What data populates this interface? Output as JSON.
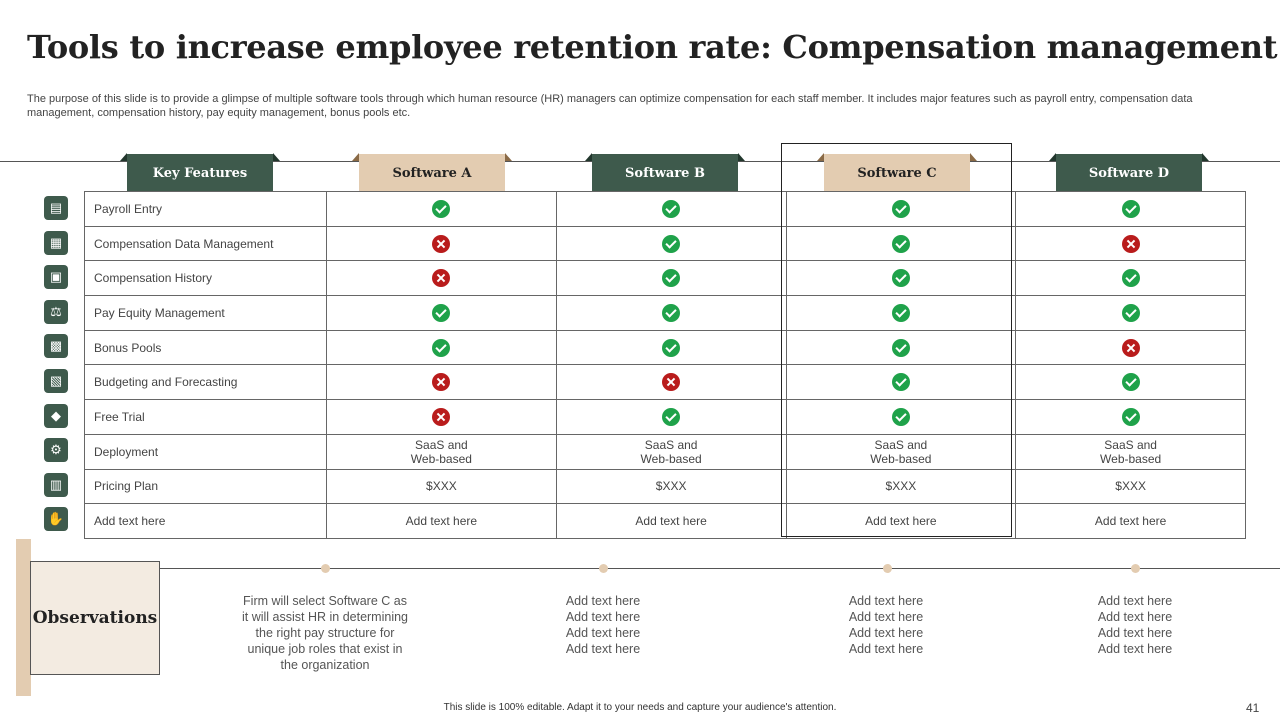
{
  "title": "Tools to increase employee retention rate: Compensation management",
  "subtitle": "The purpose of this slide is to provide a glimpse of multiple software tools through which human resource (HR) managers can optimize compensation for each staff member. It includes major features such as payroll entry, compensation data management, compensation history, pay equity management, bonus pools etc.",
  "headers": [
    "Key Features",
    "Software A",
    "Software B",
    "Software C",
    "Software D"
  ],
  "icons": [
    "payroll-icon",
    "database-icon",
    "history-icon",
    "scales-icon",
    "gift-icon",
    "budget-icon",
    "tag-icon",
    "cloud-gear-icon",
    "price-icon",
    "hand-icon"
  ],
  "rows": [
    {
      "feature": "Payroll Entry",
      "values": [
        "check",
        "check",
        "check",
        "check"
      ]
    },
    {
      "feature": "Compensation Data Management",
      "values": [
        "cross",
        "check",
        "check",
        "cross"
      ]
    },
    {
      "feature": "Compensation History",
      "values": [
        "cross",
        "check",
        "check",
        "check"
      ]
    },
    {
      "feature": "Pay Equity Management",
      "values": [
        "check",
        "check",
        "check",
        "check"
      ]
    },
    {
      "feature": "Bonus Pools",
      "values": [
        "check",
        "check",
        "check",
        "cross"
      ]
    },
    {
      "feature": "Budgeting and Forecasting",
      "values": [
        "cross",
        "cross",
        "check",
        "check"
      ]
    },
    {
      "feature": "Free Trial",
      "values": [
        "cross",
        "check",
        "check",
        "check"
      ]
    },
    {
      "feature": "Deployment",
      "values": [
        "SaaS and\nWeb-based",
        "SaaS and\nWeb-based",
        "SaaS and\nWeb-based",
        "SaaS and\nWeb-based"
      ]
    },
    {
      "feature": "Pricing Plan",
      "values": [
        "$XXX",
        "$XXX",
        "$XXX",
        "$XXX"
      ]
    },
    {
      "feature": "Add text here",
      "values": [
        "Add text here",
        "Add text here",
        "Add text here",
        "Add text here"
      ]
    }
  ],
  "observations": {
    "label": "Observations",
    "texts": [
      "Firm will select Software C as\nit will assist HR in determining\nthe right pay structure for\nunique job roles that exist in\nthe organization",
      "Add text here\nAdd text here\nAdd text here\nAdd text here",
      "Add text here\nAdd text here\nAdd text here\nAdd text here",
      "Add text here\nAdd text here\nAdd text here\nAdd text here"
    ]
  },
  "footer": "This slide is 100% editable. Adapt it to your needs and capture your audience's attention.",
  "page_number": "41"
}
